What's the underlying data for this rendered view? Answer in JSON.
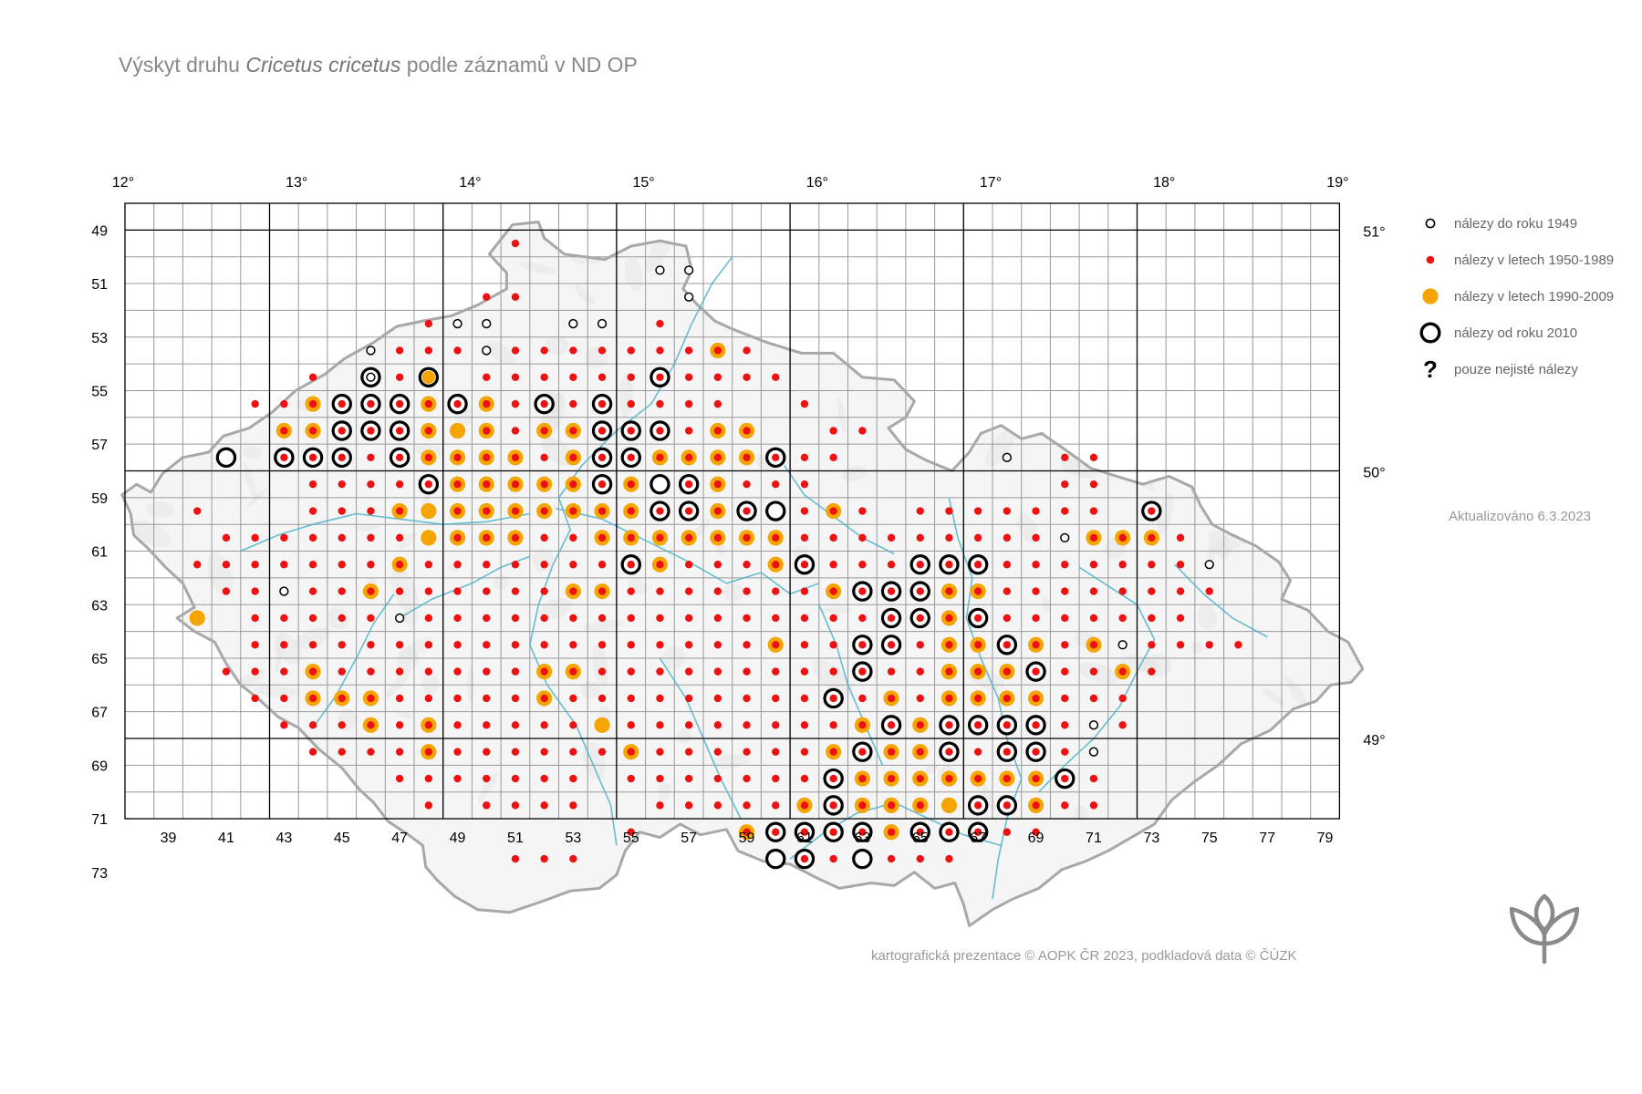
{
  "title": {
    "prefix": "Výskyt druhu ",
    "species": "Cricetus cricetus",
    "suffix": " podle záznamů v ND OP"
  },
  "longitude_labels": [
    "12°",
    "13°",
    "14°",
    "15°",
    "16°",
    "17°",
    "18°",
    "19°"
  ],
  "latitude_labels": [
    "51°",
    "50°",
    "49°"
  ],
  "row_labels": [
    "49",
    "51",
    "53",
    "55",
    "57",
    "59",
    "61",
    "63",
    "65",
    "67",
    "69",
    "71",
    "73"
  ],
  "column_labels": [
    "39",
    "41",
    "43",
    "45",
    "47",
    "49",
    "51",
    "53",
    "55",
    "57",
    "59",
    "61",
    "63",
    "65",
    "67",
    "69",
    "71",
    "73",
    "75",
    "77",
    "79"
  ],
  "legend": [
    {
      "symbol": "old",
      "label": "nálezy do roku 1949"
    },
    {
      "symbol": "red",
      "label": "nálezy v letech 1950-1989"
    },
    {
      "symbol": "orange",
      "label": "nálezy v letech 1990-2009"
    },
    {
      "symbol": "recent",
      "label": "nálezy od roku 2010"
    },
    {
      "symbol": "uncertain",
      "label": "pouze nejisté nálezy"
    }
  ],
  "uncertain_glyph": "?",
  "updated": "Aktualizováno 6.3.2023",
  "credit": "kartografická prezentace © AOPK ČR 2023, podkladová data © ČÚZK",
  "logo": "aopk-logo-icon",
  "colors": {
    "red": "#ee1111",
    "orange": "#f5a500",
    "grid": "#999999",
    "border": "#a8a8a8",
    "river": "#4fb3c8"
  },
  "records": {
    "legend_codes": "a=hollow (do 1949), r=red dot (1950-1989), O=orange (1990-2009), K=black ring (od 2010); combinations stack",
    "rows": [
      {
        "row": 48,
        "cells": {
          "51": "r"
        }
      },
      {
        "row": 49,
        "cells": {
          "56": "a",
          "57": "a"
        }
      },
      {
        "row": 50,
        "cells": {
          "50": "r",
          "51": "r",
          "57": "a"
        }
      },
      {
        "row": 51,
        "cells": {
          "48": "r",
          "49": "a",
          "50": "a",
          "53": "a",
          "54": "a",
          "56": "r"
        }
      },
      {
        "row": 52,
        "cells": {
          "46": "a",
          "47": "r",
          "48": "r",
          "49": "r",
          "50": "a",
          "51": "r",
          "52": "r",
          "53": "r",
          "54": "r",
          "55": "r",
          "56": "r",
          "57": "r",
          "58": "Or",
          "59": "r"
        }
      },
      {
        "row": 53,
        "cells": {
          "44": "r",
          "46": "Ka",
          "47": "r",
          "48": "OK",
          "50": "r",
          "51": "r",
          "52": "r",
          "53": "r",
          "54": "r",
          "55": "r",
          "56": "Kr",
          "57": "r",
          "58": "r",
          "59": "r",
          "60": "r"
        }
      },
      {
        "row": 54,
        "cells": {
          "42": "r",
          "43": "r",
          "44": "Or",
          "45": "Kr",
          "46": "Kr",
          "47": "Kr",
          "48": "Or",
          "49": "Kr",
          "50": "Or",
          "51": "r",
          "52": "Kr",
          "53": "r",
          "54": "Kr",
          "55": "r",
          "56": "r",
          "57": "r",
          "58": "r",
          "61": "r"
        }
      },
      {
        "row": 55,
        "cells": {
          "43": "Or",
          "44": "Or",
          "45": "Kr",
          "46": "Kr",
          "47": "Kr",
          "48": "Or",
          "49": "O",
          "50": "Or",
          "51": "r",
          "52": "Or",
          "53": "Or",
          "54": "Kr",
          "55": "Kr",
          "56": "Kr",
          "57": "r",
          "58": "Or",
          "59": "Or",
          "62": "r",
          "63": "r"
        }
      },
      {
        "row": 56,
        "cells": {
          "41": "K",
          "43": "Kr",
          "44": "Kr",
          "45": "Kr",
          "46": "r",
          "47": "Kr",
          "48": "Or",
          "49": "Or",
          "50": "Or",
          "51": "Or",
          "52": "r",
          "53": "Or",
          "54": "Kr",
          "55": "Kr",
          "56": "Or",
          "57": "Or",
          "58": "Or",
          "59": "Or",
          "60": "Kr",
          "61": "r",
          "62": "r",
          "68": "a",
          "70": "r",
          "71": "r"
        }
      },
      {
        "row": 57,
        "cells": {
          "44": "r",
          "45": "r",
          "46": "r",
          "47": "r",
          "48": "Kr",
          "49": "Or",
          "50": "Or",
          "51": "Or",
          "52": "Or",
          "53": "Or",
          "54": "Kr",
          "55": "Or",
          "56": "K",
          "57": "Kr",
          "58": "Or",
          "59": "r",
          "60": "r",
          "61": "r",
          "70": "r",
          "71": "r"
        }
      },
      {
        "row": 58,
        "cells": {
          "40": "r",
          "44": "r",
          "45": "r",
          "46": "r",
          "47": "Or",
          "48": "O",
          "49": "Or",
          "50": "Or",
          "51": "Or",
          "52": "Or",
          "53": "Or",
          "54": "Or",
          "55": "Or",
          "56": "Kr",
          "57": "Kr",
          "58": "Or",
          "59": "Kr",
          "60": "K",
          "61": "r",
          "62": "Or",
          "63": "r",
          "65": "r",
          "66": "r",
          "67": "r",
          "68": "r",
          "69": "r",
          "70": "r",
          "71": "r",
          "73": "Kr"
        }
      },
      {
        "row": 59,
        "cells": {
          "41": "r",
          "42": "r",
          "43": "r",
          "44": "r",
          "45": "r",
          "46": "r",
          "47": "r",
          "48": "O",
          "49": "Or",
          "50": "Or",
          "51": "Or",
          "52": "r",
          "53": "r",
          "54": "Or",
          "55": "Or",
          "56": "Or",
          "57": "Or",
          "58": "Or",
          "59": "Or",
          "60": "Or",
          "61": "r",
          "62": "r",
          "63": "r",
          "64": "r",
          "65": "r",
          "66": "r",
          "67": "r",
          "68": "r",
          "69": "r",
          "70": "a",
          "71": "Or",
          "72": "Or",
          "73": "Or",
          "74": "r"
        }
      },
      {
        "row": 60,
        "cells": {
          "40": "r",
          "41": "r",
          "42": "r",
          "43": "r",
          "44": "r",
          "45": "r",
          "46": "r",
          "47": "Or",
          "48": "r",
          "49": "r",
          "50": "r",
          "51": "r",
          "52": "r",
          "53": "r",
          "54": "r",
          "55": "Kr",
          "56": "Or",
          "57": "r",
          "58": "r",
          "59": "r",
          "60": "Or",
          "61": "Kr",
          "62": "r",
          "63": "r",
          "64": "r",
          "65": "Kr",
          "66": "Kr",
          "67": "Kr",
          "68": "r",
          "69": "r",
          "70": "r",
          "71": "r",
          "72": "r",
          "73": "r",
          "74": "r",
          "75": "a"
        }
      },
      {
        "row": 61,
        "cells": {
          "41": "r",
          "42": "r",
          "43": "a",
          "44": "r",
          "45": "r",
          "46": "Or",
          "47": "r",
          "48": "r",
          "49": "r",
          "50": "r",
          "51": "r",
          "52": "r",
          "53": "Or",
          "54": "Or",
          "55": "r",
          "56": "r",
          "57": "r",
          "58": "r",
          "59": "r",
          "60": "r",
          "61": "r",
          "62": "Or",
          "63": "Kr",
          "64": "Kr",
          "65": "Kr",
          "66": "Or",
          "67": "Or",
          "68": "r",
          "69": "r",
          "70": "r",
          "71": "r",
          "72": "r",
          "73": "r",
          "74": "r",
          "75": "r"
        }
      },
      {
        "row": 62,
        "cells": {
          "40": "O",
          "42": "r",
          "43": "r",
          "44": "r",
          "45": "r",
          "46": "r",
          "47": "a",
          "48": "r",
          "49": "r",
          "50": "r",
          "51": "r",
          "52": "r",
          "53": "r",
          "54": "r",
          "55": "r",
          "56": "r",
          "57": "r",
          "58": "r",
          "59": "r",
          "60": "r",
          "61": "r",
          "62": "r",
          "63": "r",
          "64": "Kr",
          "65": "Kr",
          "66": "Or",
          "67": "Kr",
          "68": "r",
          "69": "r",
          "70": "r",
          "71": "r",
          "72": "r",
          "73": "r",
          "74": "r"
        }
      },
      {
        "row": 63,
        "cells": {
          "42": "r",
          "43": "r",
          "44": "r",
          "45": "r",
          "46": "r",
          "47": "r",
          "48": "r",
          "49": "r",
          "50": "r",
          "51": "r",
          "52": "r",
          "53": "r",
          "54": "r",
          "55": "r",
          "56": "r",
          "57": "r",
          "58": "r",
          "59": "r",
          "60": "Or",
          "61": "r",
          "62": "r",
          "63": "Kr",
          "64": "Kr",
          "65": "r",
          "66": "Or",
          "67": "Or",
          "68": "Kr",
          "69": "Or",
          "70": "r",
          "71": "Or",
          "72": "a",
          "73": "r",
          "74": "r",
          "75": "r",
          "76": "r"
        }
      },
      {
        "row": 64,
        "cells": {
          "41": "r",
          "42": "r",
          "43": "r",
          "44": "Or",
          "45": "r",
          "46": "r",
          "47": "r",
          "48": "r",
          "49": "r",
          "50": "r",
          "51": "r",
          "52": "Or",
          "53": "Or",
          "54": "r",
          "55": "r",
          "56": "r",
          "57": "r",
          "58": "r",
          "59": "r",
          "60": "r",
          "61": "r",
          "62": "r",
          "63": "Kr",
          "64": "r",
          "65": "r",
          "66": "Or",
          "67": "Or",
          "68": "Or",
          "69": "Kr",
          "70": "r",
          "71": "r",
          "72": "Or",
          "73": "r"
        }
      },
      {
        "row": 65,
        "cells": {
          "42": "r",
          "43": "r",
          "44": "Or",
          "45": "Or",
          "46": "Or",
          "47": "r",
          "48": "r",
          "49": "r",
          "50": "r",
          "51": "r",
          "52": "Or",
          "53": "r",
          "54": "r",
          "55": "r",
          "56": "r",
          "57": "r",
          "58": "r",
          "59": "r",
          "60": "r",
          "61": "r",
          "62": "Kr",
          "63": "r",
          "64": "Or",
          "65": "r",
          "66": "Or",
          "67": "Or",
          "68": "Or",
          "69": "Or",
          "70": "r",
          "71": "r",
          "72": "r"
        }
      },
      {
        "row": 66,
        "cells": {
          "43": "r",
          "44": "r",
          "45": "r",
          "46": "Or",
          "47": "r",
          "48": "Or",
          "49": "r",
          "50": "r",
          "51": "r",
          "52": "r",
          "53": "r",
          "54": "O",
          "55": "r",
          "56": "r",
          "57": "r",
          "58": "r",
          "59": "r",
          "60": "r",
          "61": "r",
          "62": "r",
          "63": "Or",
          "64": "Kr",
          "65": "Or",
          "66": "Kr",
          "67": "Kr",
          "68": "Kr",
          "69": "Kr",
          "70": "r",
          "71": "a",
          "72": "r"
        }
      },
      {
        "row": 67,
        "cells": {
          "44": "r",
          "45": "r",
          "46": "r",
          "47": "r",
          "48": "Or",
          "49": "r",
          "50": "r",
          "51": "r",
          "52": "r",
          "53": "r",
          "54": "r",
          "55": "Or",
          "56": "r",
          "57": "r",
          "58": "r",
          "59": "r",
          "60": "r",
          "61": "r",
          "62": "Or",
          "63": "Kr",
          "64": "Or",
          "65": "Or",
          "66": "Kr",
          "67": "r",
          "68": "Kr",
          "69": "Kr",
          "70": "r",
          "71": "a"
        }
      },
      {
        "row": 68,
        "cells": {
          "47": "r",
          "48": "r",
          "49": "r",
          "50": "r",
          "51": "r",
          "52": "r",
          "53": "r",
          "55": "r",
          "56": "r",
          "57": "r",
          "58": "r",
          "59": "r",
          "60": "r",
          "61": "r",
          "62": "Kr",
          "63": "Or",
          "64": "Or",
          "65": "Or",
          "66": "Or",
          "67": "Or",
          "68": "Or",
          "69": "Or",
          "70": "Kr",
          "71": "r"
        }
      },
      {
        "row": 69,
        "cells": {
          "48": "r",
          "50": "r",
          "51": "r",
          "52": "r",
          "53": "r",
          "56": "r",
          "57": "r",
          "58": "r",
          "59": "r",
          "60": "r",
          "61": "Or",
          "62": "Kr",
          "63": "Or",
          "64": "Or",
          "65": "Or",
          "66": "O",
          "67": "Kr",
          "68": "Kr",
          "69": "Or",
          "70": "r",
          "71": "r"
        }
      },
      {
        "row": 70,
        "cells": {
          "55": "r",
          "59": "Or",
          "60": "Kr",
          "61": "Kr",
          "62": "Kr",
          "63": "Kr",
          "64": "Or",
          "65": "Kr",
          "66": "Kr",
          "67": "Kr",
          "68": "r",
          "69": "r"
        }
      },
      {
        "row": 71,
        "cells": {
          "51": "r",
          "52": "r",
          "53": "r",
          "60": "K",
          "61": "Kr",
          "62": "r",
          "63": "K",
          "64": "r",
          "65": "r",
          "66": "r"
        }
      }
    ]
  }
}
